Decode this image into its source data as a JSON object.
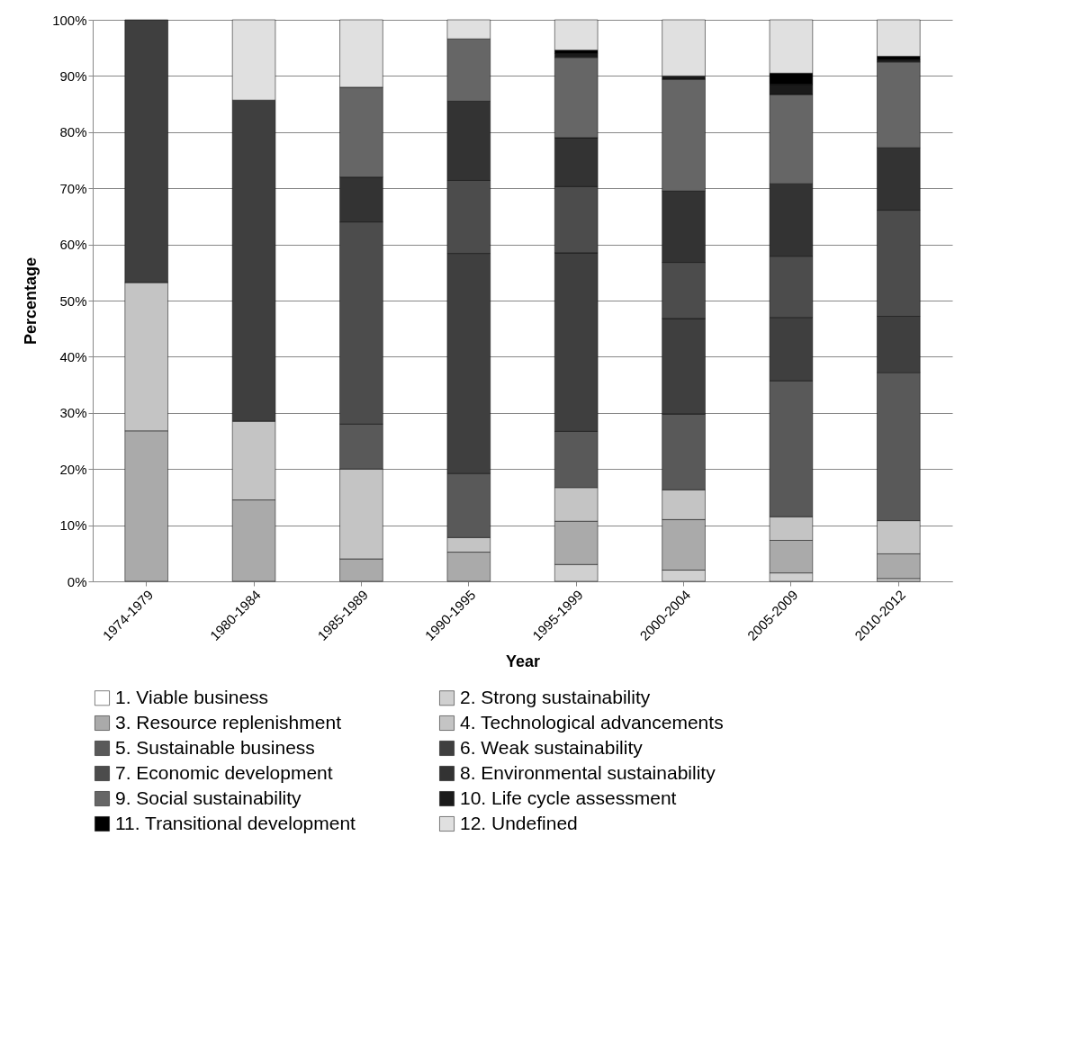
{
  "chart_data": {
    "type": "bar",
    "stacked": true,
    "xlabel": "Year",
    "ylabel": "Percentage",
    "categories": [
      "1974-1979",
      "1980-1984",
      "1985-1989",
      "1990-1995",
      "1995-1999",
      "2000-2004",
      "2005-2009",
      "2010-2012"
    ],
    "series": [
      {
        "name": "1. Viable business",
        "color": "#ffffff",
        "values": [
          0,
          0,
          0,
          0,
          0,
          0,
          0,
          0
        ]
      },
      {
        "name": "2. Strong sustainability",
        "color": "#d0d0d0",
        "values": [
          0,
          0,
          0,
          0,
          3,
          2,
          1.5,
          0.5
        ]
      },
      {
        "name": "3. Resource replenishment",
        "color": "#aaaaaa",
        "values": [
          26.8,
          14.5,
          4,
          5.2,
          7.7,
          9,
          5.8,
          4.4
        ]
      },
      {
        "name": "4. Technological advancements",
        "color": "#c4c4c4",
        "values": [
          26.4,
          14,
          16,
          2.6,
          6,
          5.3,
          4.2,
          5.9
        ]
      },
      {
        "name": "5. Sustainable business",
        "color": "#595959",
        "values": [
          0,
          0,
          8,
          11.4,
          10,
          13.5,
          24.2,
          26.4
        ]
      },
      {
        "name": "6. Weak sustainability",
        "color": "#3f3f3f",
        "values": [
          46.8,
          57.2,
          0,
          39.2,
          31.8,
          17,
          11.3,
          10
        ]
      },
      {
        "name": "7. Economic development",
        "color": "#4c4c4c",
        "values": [
          0,
          0,
          36,
          13,
          11.8,
          10,
          10.9,
          18.9
        ]
      },
      {
        "name": "8. Environmental sustainability",
        "color": "#333333",
        "values": [
          0,
          0,
          8,
          14.1,
          8.7,
          12.7,
          12.9,
          11.1
        ]
      },
      {
        "name": "9. Social sustainability",
        "color": "#666666",
        "values": [
          0,
          0,
          16,
          11.1,
          14.3,
          19.9,
          15.9,
          15.3
        ]
      },
      {
        "name": "10. Life cycle assessment",
        "color": "#1a1a1a",
        "values": [
          0,
          0,
          0,
          0,
          0.7,
          0.6,
          1.8,
          0.4
        ]
      },
      {
        "name": "11. Transitional development",
        "color": "#000000",
        "values": [
          0,
          0,
          0,
          0,
          0.6,
          0,
          2,
          0.6
        ]
      },
      {
        "name": "12. Undefined",
        "color": "#e0e0e0",
        "values": [
          0,
          14.3,
          12,
          3.4,
          5.4,
          10,
          9.5,
          6.5
        ]
      }
    ],
    "ylim": [
      0,
      100
    ],
    "yticks": [
      {
        "value": 0,
        "label": "0%"
      },
      {
        "value": 10,
        "label": "10%"
      },
      {
        "value": 20,
        "label": "20%"
      },
      {
        "value": 30,
        "label": "30%"
      },
      {
        "value": 40,
        "label": "40%"
      },
      {
        "value": 50,
        "label": "50%"
      },
      {
        "value": 60,
        "label": "60%"
      },
      {
        "value": 70,
        "label": "70%"
      },
      {
        "value": 80,
        "label": "80%"
      },
      {
        "value": 90,
        "label": "90%"
      },
      {
        "value": 100,
        "label": "100%"
      }
    ],
    "grid": "y",
    "legend": "bottom"
  }
}
